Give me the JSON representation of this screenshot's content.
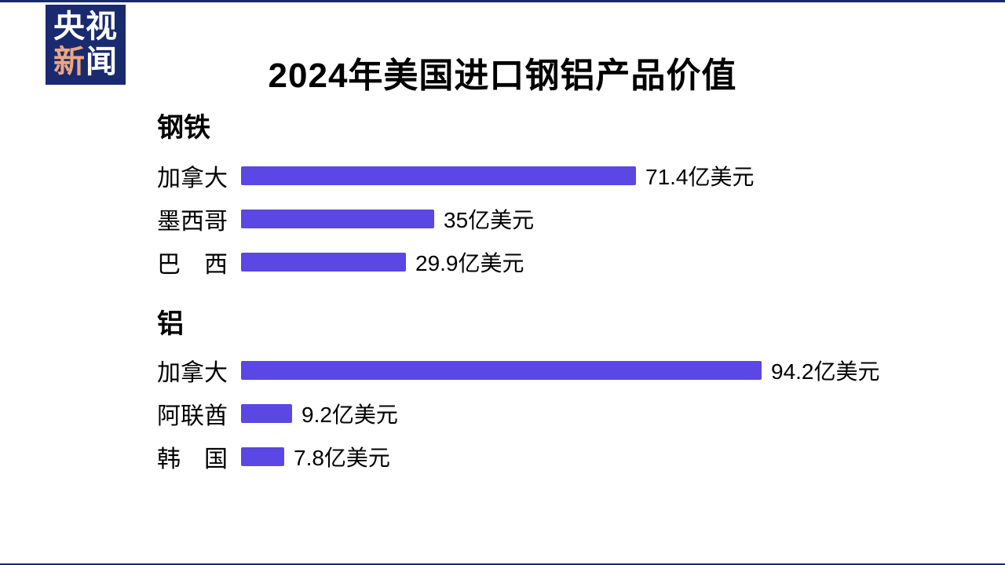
{
  "page": {
    "background": "#ffffff",
    "accent_navy": "#1a2a6e"
  },
  "logo": {
    "line1": "央视",
    "line2_first": "新",
    "line2_rest": "闻",
    "bg_color": "#1a2a6e",
    "highlight_color": "#eda584"
  },
  "title": "2024年美国进口钢铝产品价值",
  "chart_data": {
    "type": "bar",
    "orientation": "horizontal",
    "title": "2024年美国进口钢铝产品价值",
    "unit": "亿美元",
    "bar_color": "#5a47e4",
    "xlim": [
      0,
      100
    ],
    "grid": false,
    "legend": false,
    "sections": [
      {
        "label": "钢铁",
        "categories": [
          "加拿大",
          "墨西哥",
          "巴　西"
        ],
        "values": [
          71.4,
          35,
          29.9
        ],
        "items": [
          {
            "country": "加拿大",
            "value": 71.4,
            "value_label": "71.4亿美元"
          },
          {
            "country": "墨西哥",
            "value": 35,
            "value_label": "35亿美元"
          },
          {
            "country": "巴　西",
            "value": 29.9,
            "value_label": "29.9亿美元"
          }
        ]
      },
      {
        "label": "铝",
        "categories": [
          "加拿大",
          "阿联酋",
          "韩　国"
        ],
        "values": [
          94.2,
          9.2,
          7.8
        ],
        "items": [
          {
            "country": "加拿大",
            "value": 94.2,
            "value_label": "94.2亿美元"
          },
          {
            "country": "阿联酋",
            "value": 9.2,
            "value_label": "9.2亿美元"
          },
          {
            "country": "韩　国",
            "value": 7.8,
            "value_label": "7.8亿美元"
          }
        ]
      }
    ]
  }
}
